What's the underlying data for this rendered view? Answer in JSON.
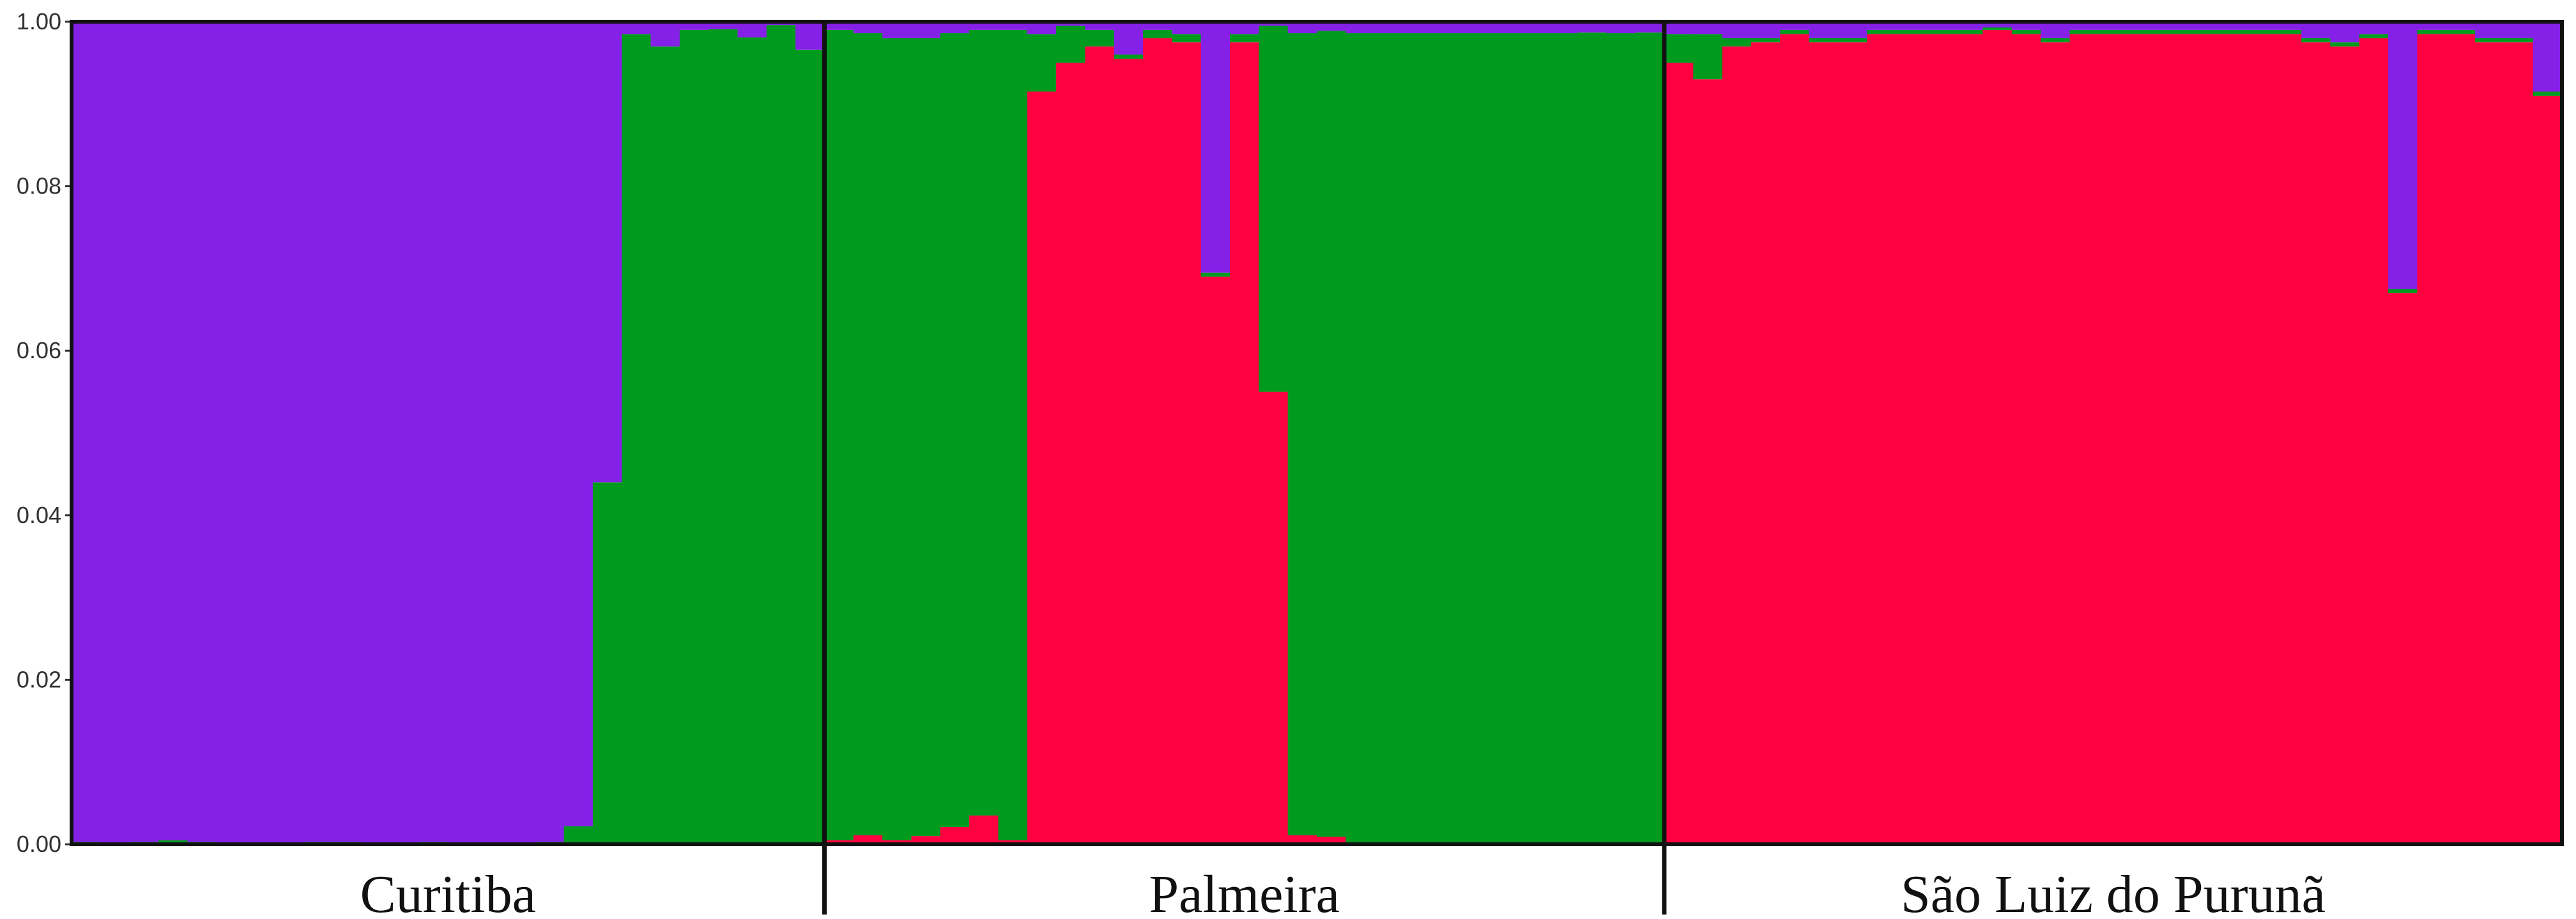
{
  "chart_data": {
    "type": "bar",
    "stacked": true,
    "colors": {
      "cluster_red": "#ff0040",
      "cluster_green": "#009a1f",
      "cluster_purple": "#8520e6"
    },
    "ylim": [
      0,
      1.0
    ],
    "yticks": [
      "0.00",
      "0.02",
      "0.04",
      "0.06",
      "0.08",
      "1.00"
    ],
    "groups": [
      {
        "label": "Curitiba",
        "start": 0,
        "count": 26
      },
      {
        "label": "Palmeira",
        "start": 26,
        "count": 29
      },
      {
        "label": "São Luiz do Purunã",
        "start": 55,
        "count": 31
      }
    ],
    "series_order": [
      "cluster_red",
      "cluster_green",
      "cluster_purple"
    ],
    "series": [
      {
        "key": "cluster_red",
        "values": [
          0.001,
          0.001,
          0.002,
          0.001,
          0,
          0,
          0,
          0,
          0.002,
          0.002,
          0.001,
          0.001,
          0.001,
          0,
          0,
          0,
          0,
          0.012,
          0.066,
          0,
          0,
          0,
          0.001,
          0.001,
          0.001,
          0.001,
          0.005,
          0.011,
          0.005,
          0.01,
          0.021,
          0.035,
          0.005,
          0.915,
          0.95,
          0.97,
          0.955,
          0.98,
          0.975,
          0.975,
          0.975,
          0.11,
          0.011,
          0.009,
          0.001,
          0.001,
          0.001,
          0.001,
          0.001,
          0.001,
          0.001,
          0.001,
          0.002,
          0.001,
          0.002,
          0.95,
          0.93,
          0.97,
          0.975,
          0.985,
          0.975,
          0.975,
          0.985,
          0.985,
          0.985,
          0.985,
          0.99,
          0.985,
          0.975,
          0.985,
          0.985,
          0.985,
          0.985,
          0.985,
          0.985,
          0.985,
          0.985,
          0.975,
          0.97,
          0.98,
          0.975,
          0.985,
          0.985,
          0.975,
          0.975,
          0.91
        ]
      },
      {
        "key": "cluster_green",
        "values": [
          0.002,
          0.001,
          0.001,
          0.004,
          0.003,
          0.002,
          0.001,
          0.002,
          0.001,
          0.001,
          0.001,
          0.001,
          0.002,
          0.001,
          0.002,
          0.002,
          0.003,
          0.045,
          0.04,
          0.985,
          0.97,
          0.99,
          0.99,
          0.98,
          0.995,
          0.965,
          0.985,
          0.975,
          0.975,
          0.97,
          0.965,
          0.955,
          0.985,
          0.07,
          0.045,
          0.02,
          0.005,
          0.01,
          0.01,
          0.01,
          0.01,
          0.87,
          0.975,
          0.98,
          0.985,
          0.985,
          0.985,
          0.985,
          0.985,
          0.985,
          0.985,
          0.985,
          0.985,
          0.985,
          0.985,
          0.035,
          0.055,
          0.01,
          0.005,
          0.005,
          0.005,
          0.005,
          0.005,
          0.005,
          0.005,
          0.005,
          0.003,
          0.005,
          0.005,
          0.005,
          0.005,
          0.005,
          0.005,
          0.005,
          0.005,
          0.005,
          0.005,
          0.005,
          0.005,
          0.005,
          0.005,
          0.005,
          0.005,
          0.005,
          0.005,
          0.005
        ]
      },
      {
        "key": "cluster_purple",
        "values": [
          0.997,
          0.998,
          0.997,
          0.995,
          0.997,
          0.998,
          0.999,
          0.998,
          0.997,
          0.997,
          0.998,
          0.998,
          0.997,
          0.999,
          0.998,
          0.998,
          0.997,
          0.943,
          0.894,
          0.015,
          0.03,
          0.01,
          0.009,
          0.019,
          0.004,
          0.034,
          0.01,
          0.014,
          0.02,
          0.02,
          0.014,
          0.01,
          0.01,
          0.015,
          0.005,
          0.01,
          0.04,
          0.01,
          0.015,
          0.015,
          0.015,
          0.02,
          0.014,
          0.011,
          0.014,
          0.014,
          0.014,
          0.014,
          0.014,
          0.014,
          0.014,
          0.014,
          0.013,
          0.014,
          0.013,
          0.015,
          0.015,
          0.02,
          0.02,
          0.01,
          0.02,
          0.02,
          0.01,
          0.01,
          0.01,
          0.01,
          0.007,
          0.01,
          0.02,
          0.01,
          0.01,
          0.01,
          0.01,
          0.01,
          0.01,
          0.01,
          0.01,
          0.02,
          0.025,
          0.015,
          0.02,
          0.01,
          0.01,
          0.02,
          0.02,
          0.085
        ]
      }
    ],
    "overrides": [
      {
        "index": 18,
        "cluster_red": 0.0,
        "cluster_green": 0.44,
        "cluster_purple": 0.56
      },
      {
        "index": 17,
        "cluster_red": 0.002,
        "cluster_green": 0.02,
        "cluster_purple": 0.978
      },
      {
        "index": 41,
        "cluster_red": 0.55,
        "cluster_green": 0.445,
        "cluster_purple": 0.005
      },
      {
        "index": 39,
        "cluster_red": 0.69,
        "cluster_green": 0.005,
        "cluster_purple": 0.305
      },
      {
        "index": 80,
        "cluster_red": 0.67,
        "cluster_green": 0.005,
        "cluster_purple": 0.325
      }
    ]
  }
}
